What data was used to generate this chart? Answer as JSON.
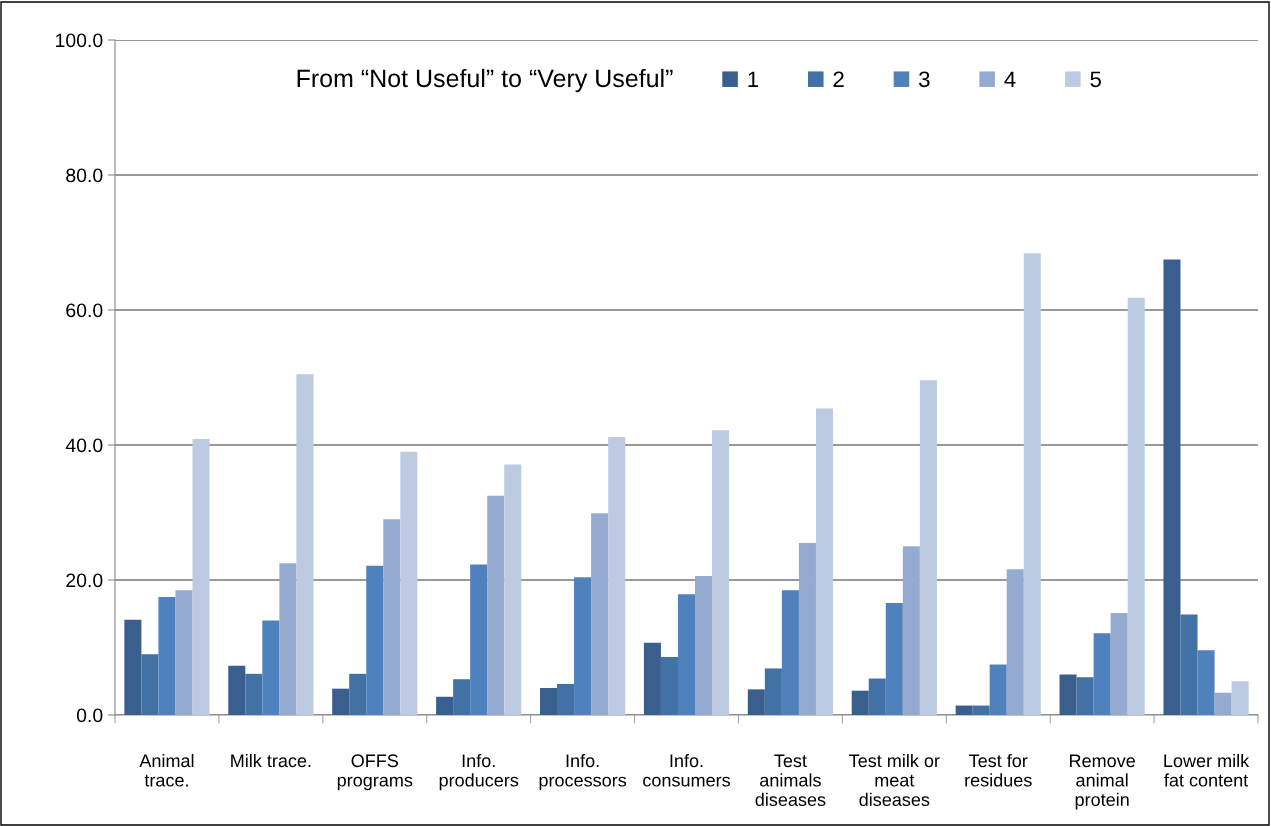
{
  "chart_data": {
    "type": "bar",
    "categories": [
      "Animal\ntrace.",
      "Milk trace.",
      "OFFS\nprograms",
      "Info.\nproducers",
      "Info.\nprocessors",
      "Info.\nconsumers",
      "Test\nanimals\ndiseases",
      "Test milk or\nmeat\ndiseases",
      "Test for\nresidues",
      "Remove\nanimal\nprotein",
      "Lower milk\nfat content"
    ],
    "legend_title": "From “Not Useful” to “Very Useful”",
    "series": [
      {
        "name": "1",
        "color": "#3a5f8f",
        "values": [
          14.1,
          7.3,
          3.9,
          2.7,
          4.0,
          10.7,
          3.8,
          3.6,
          1.4,
          6.0,
          67.5
        ]
      },
      {
        "name": "2",
        "color": "#4271a6",
        "values": [
          9.0,
          6.1,
          6.1,
          5.3,
          4.6,
          8.6,
          6.9,
          5.4,
          1.4,
          5.6,
          14.9
        ]
      },
      {
        "name": "3",
        "color": "#4f81bd",
        "values": [
          17.5,
          14.0,
          22.1,
          22.3,
          20.4,
          17.9,
          18.5,
          16.6,
          7.5,
          12.1,
          9.6
        ]
      },
      {
        "name": "4",
        "color": "#95aad0",
        "values": [
          18.5,
          22.5,
          29.0,
          32.5,
          29.9,
          20.6,
          25.5,
          25.0,
          21.6,
          15.1,
          3.3
        ]
      },
      {
        "name": "5",
        "color": "#bccae2",
        "values": [
          40.9,
          50.5,
          39.0,
          37.1,
          41.2,
          42.2,
          45.4,
          49.6,
          68.4,
          61.8,
          5.0
        ]
      }
    ],
    "ylim": [
      0,
      100
    ],
    "yticks": [
      {
        "value": 0,
        "label": "0.0"
      },
      {
        "value": 20,
        "label": "20.0"
      },
      {
        "value": 40,
        "label": "40.0"
      },
      {
        "value": 60,
        "label": "60.0"
      },
      {
        "value": 80,
        "label": "80.0"
      },
      {
        "value": 100,
        "label": "100.0"
      }
    ],
    "grid": "y",
    "legend": "top"
  }
}
